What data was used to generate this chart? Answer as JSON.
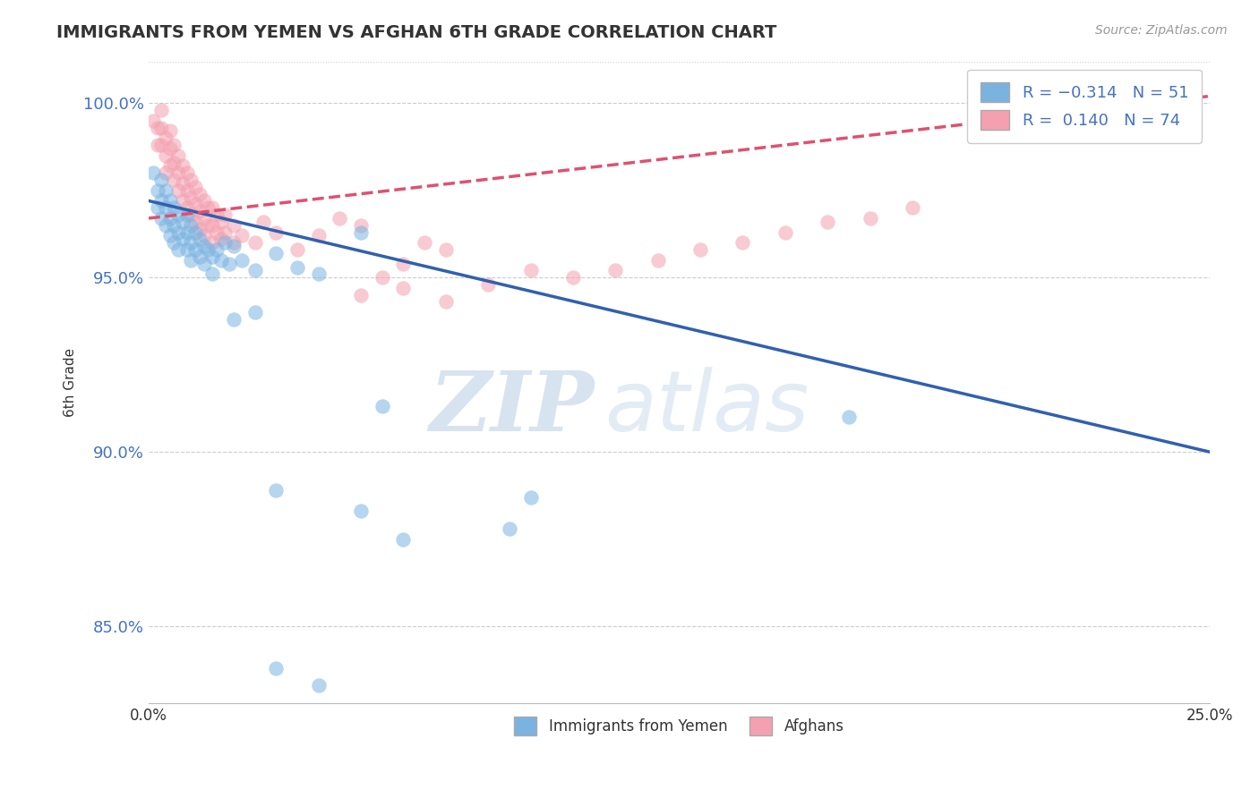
{
  "title": "IMMIGRANTS FROM YEMEN VS AFGHAN 6TH GRADE CORRELATION CHART",
  "source_text": "Source: ZipAtlas.com",
  "ylabel": "6th Grade",
  "xlim": [
    0.0,
    0.25
  ],
  "ylim": [
    0.828,
    1.012
  ],
  "x_ticks": [
    0.0,
    0.05,
    0.1,
    0.15,
    0.2,
    0.25
  ],
  "x_tick_labels": [
    "0.0%",
    "",
    "",
    "",
    "",
    "25.0%"
  ],
  "y_ticks": [
    0.85,
    0.9,
    0.95,
    1.0
  ],
  "y_tick_labels": [
    "85.0%",
    "90.0%",
    "95.0%",
    "100.0%"
  ],
  "blue_color": "#7ab3e0",
  "pink_color": "#f4a0b0",
  "blue_line_color": "#3060b0",
  "pink_line_color": "#e05070",
  "watermark_zip": "ZIP",
  "watermark_atlas": "atlas",
  "blue_scatter": [
    [
      0.001,
      0.98
    ],
    [
      0.002,
      0.975
    ],
    [
      0.002,
      0.97
    ],
    [
      0.003,
      0.978
    ],
    [
      0.003,
      0.972
    ],
    [
      0.003,
      0.967
    ],
    [
      0.004,
      0.975
    ],
    [
      0.004,
      0.97
    ],
    [
      0.004,
      0.965
    ],
    [
      0.005,
      0.972
    ],
    [
      0.005,
      0.967
    ],
    [
      0.005,
      0.962
    ],
    [
      0.006,
      0.97
    ],
    [
      0.006,
      0.965
    ],
    [
      0.006,
      0.96
    ],
    [
      0.007,
      0.968
    ],
    [
      0.007,
      0.963
    ],
    [
      0.007,
      0.958
    ],
    [
      0.008,
      0.966
    ],
    [
      0.008,
      0.961
    ],
    [
      0.009,
      0.968
    ],
    [
      0.009,
      0.963
    ],
    [
      0.009,
      0.958
    ],
    [
      0.01,
      0.965
    ],
    [
      0.01,
      0.96
    ],
    [
      0.01,
      0.955
    ],
    [
      0.011,
      0.963
    ],
    [
      0.011,
      0.958
    ],
    [
      0.012,
      0.961
    ],
    [
      0.012,
      0.956
    ],
    [
      0.013,
      0.959
    ],
    [
      0.013,
      0.954
    ],
    [
      0.014,
      0.958
    ],
    [
      0.015,
      0.956
    ],
    [
      0.015,
      0.951
    ],
    [
      0.016,
      0.958
    ],
    [
      0.017,
      0.955
    ],
    [
      0.018,
      0.96
    ],
    [
      0.019,
      0.954
    ],
    [
      0.02,
      0.959
    ],
    [
      0.022,
      0.955
    ],
    [
      0.025,
      0.952
    ],
    [
      0.03,
      0.957
    ],
    [
      0.035,
      0.953
    ],
    [
      0.04,
      0.951
    ],
    [
      0.05,
      0.963
    ],
    [
      0.02,
      0.938
    ],
    [
      0.025,
      0.94
    ],
    [
      0.055,
      0.913
    ],
    [
      0.165,
      0.91
    ],
    [
      0.03,
      0.889
    ],
    [
      0.05,
      0.883
    ],
    [
      0.09,
      0.887
    ],
    [
      0.06,
      0.875
    ],
    [
      0.085,
      0.878
    ],
    [
      0.03,
      0.838
    ],
    [
      0.04,
      0.833
    ]
  ],
  "pink_scatter": [
    [
      0.001,
      0.995
    ],
    [
      0.002,
      0.993
    ],
    [
      0.002,
      0.988
    ],
    [
      0.003,
      0.998
    ],
    [
      0.003,
      0.993
    ],
    [
      0.003,
      0.988
    ],
    [
      0.004,
      0.99
    ],
    [
      0.004,
      0.985
    ],
    [
      0.004,
      0.98
    ],
    [
      0.005,
      0.992
    ],
    [
      0.005,
      0.987
    ],
    [
      0.005,
      0.982
    ],
    [
      0.006,
      0.988
    ],
    [
      0.006,
      0.983
    ],
    [
      0.006,
      0.978
    ],
    [
      0.007,
      0.985
    ],
    [
      0.007,
      0.98
    ],
    [
      0.007,
      0.975
    ],
    [
      0.008,
      0.982
    ],
    [
      0.008,
      0.977
    ],
    [
      0.008,
      0.972
    ],
    [
      0.009,
      0.98
    ],
    [
      0.009,
      0.975
    ],
    [
      0.009,
      0.97
    ],
    [
      0.01,
      0.978
    ],
    [
      0.01,
      0.973
    ],
    [
      0.01,
      0.968
    ],
    [
      0.011,
      0.976
    ],
    [
      0.011,
      0.971
    ],
    [
      0.011,
      0.966
    ],
    [
      0.012,
      0.974
    ],
    [
      0.012,
      0.969
    ],
    [
      0.012,
      0.964
    ],
    [
      0.013,
      0.972
    ],
    [
      0.013,
      0.967
    ],
    [
      0.013,
      0.962
    ],
    [
      0.014,
      0.97
    ],
    [
      0.014,
      0.965
    ],
    [
      0.015,
      0.97
    ],
    [
      0.015,
      0.965
    ],
    [
      0.015,
      0.96
    ],
    [
      0.016,
      0.968
    ],
    [
      0.016,
      0.963
    ],
    [
      0.017,
      0.966
    ],
    [
      0.017,
      0.961
    ],
    [
      0.018,
      0.968
    ],
    [
      0.018,
      0.963
    ],
    [
      0.02,
      0.965
    ],
    [
      0.02,
      0.96
    ],
    [
      0.022,
      0.962
    ],
    [
      0.025,
      0.96
    ],
    [
      0.027,
      0.966
    ],
    [
      0.03,
      0.963
    ],
    [
      0.035,
      0.958
    ],
    [
      0.04,
      0.962
    ],
    [
      0.045,
      0.967
    ],
    [
      0.05,
      0.965
    ],
    [
      0.055,
      0.95
    ],
    [
      0.06,
      0.954
    ],
    [
      0.065,
      0.96
    ],
    [
      0.07,
      0.958
    ],
    [
      0.05,
      0.945
    ],
    [
      0.06,
      0.947
    ],
    [
      0.07,
      0.943
    ],
    [
      0.08,
      0.948
    ],
    [
      0.09,
      0.952
    ],
    [
      0.1,
      0.95
    ],
    [
      0.11,
      0.952
    ],
    [
      0.12,
      0.955
    ],
    [
      0.13,
      0.958
    ],
    [
      0.14,
      0.96
    ],
    [
      0.15,
      0.963
    ],
    [
      0.16,
      0.966
    ],
    [
      0.17,
      0.967
    ],
    [
      0.18,
      0.97
    ]
  ],
  "blue_line": [
    [
      0.0,
      0.972
    ],
    [
      0.25,
      0.9
    ]
  ],
  "pink_line": [
    [
      0.0,
      0.967
    ],
    [
      0.25,
      1.002
    ]
  ]
}
